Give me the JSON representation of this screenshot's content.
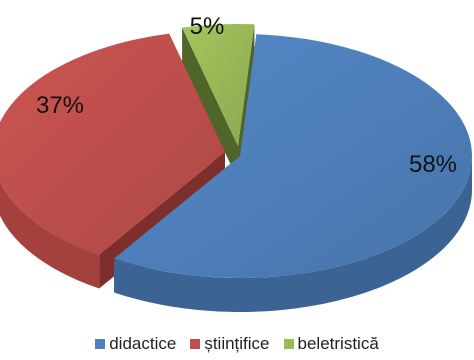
{
  "chart_data": {
    "type": "pie",
    "title": "",
    "categories": [
      "didactice",
      "științifice",
      "beletristică"
    ],
    "values": [
      58,
      37,
      5
    ],
    "data_labels": [
      "58%",
      "37%",
      "5%"
    ],
    "colors": [
      "#4F81BD",
      "#C0504D",
      "#9BBB59"
    ],
    "exploded": true,
    "three_d": true,
    "legend_position": "bottom"
  },
  "legend": {
    "items": [
      {
        "label": "didactice",
        "color": "#4F81BD"
      },
      {
        "label": "științifice",
        "color": "#C0504D"
      },
      {
        "label": "beletristică",
        "color": "#9BBB59"
      }
    ]
  }
}
